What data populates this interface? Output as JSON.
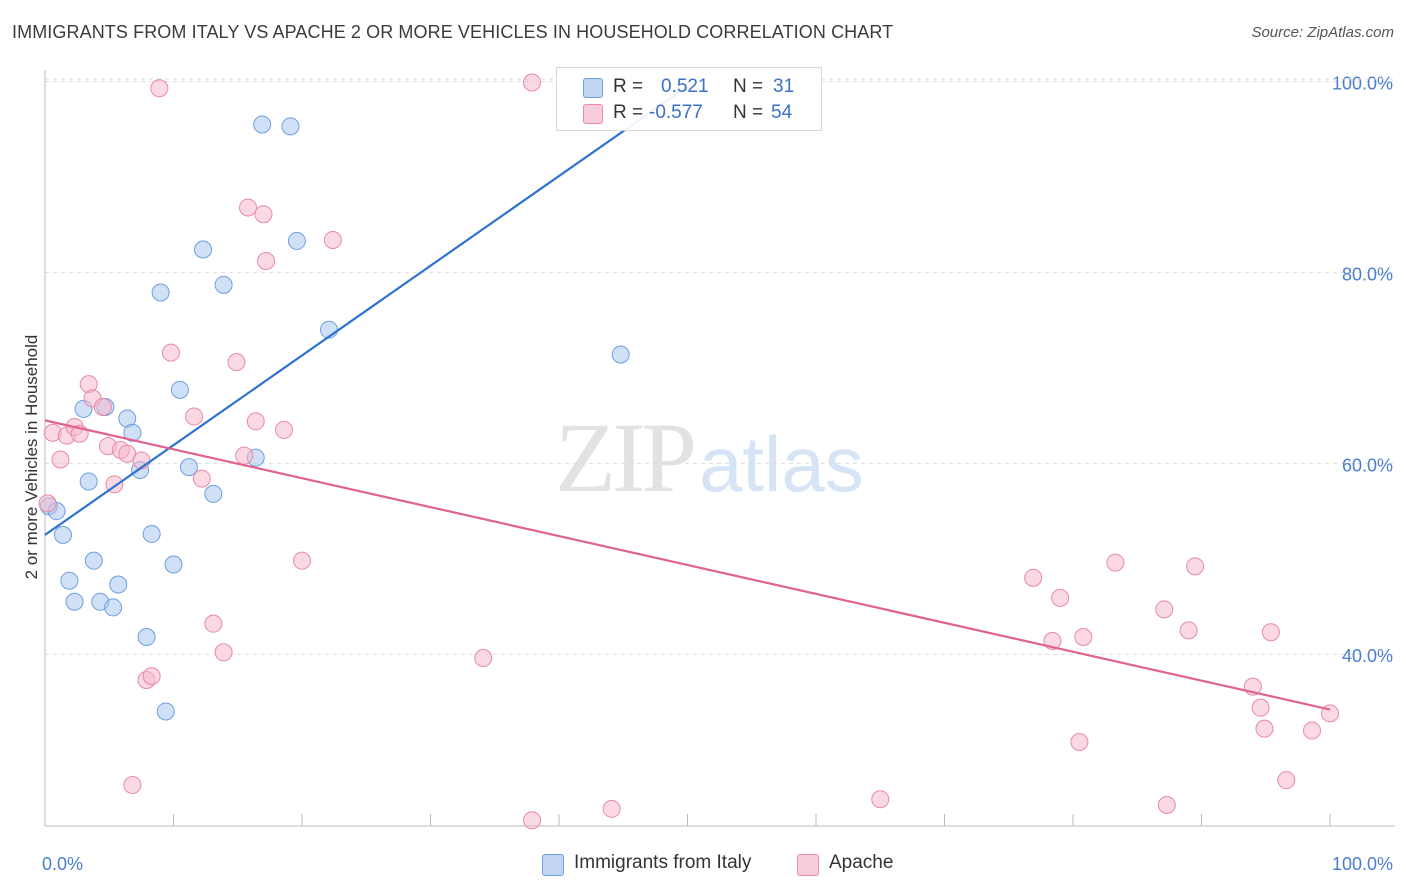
{
  "title": "IMMIGRANTS FROM ITALY VS APACHE 2 OR MORE VEHICLES IN HOUSEHOLD CORRELATION CHART",
  "source": "Source: ZipAtlas.com",
  "watermark": {
    "zip": "ZIP",
    "atlas": "atlas"
  },
  "legend_top": {
    "rows": [
      {
        "r_label": "R =",
        "r_value": "0.521",
        "n_label": "N =",
        "n_value": "31",
        "color": "#a9c6f0"
      },
      {
        "r_label": "R =",
        "r_value": "-0.577",
        "n_label": "N =",
        "n_value": "54",
        "color": "#f5b9cc"
      }
    ]
  },
  "legend_bottom": [
    {
      "label": "Immigrants from Italy",
      "color": "#a9c6f0"
    },
    {
      "label": "Apache",
      "color": "#f5b9cc"
    }
  ],
  "chart_data": {
    "type": "scatter",
    "xlabel": "",
    "ylabel": "2 or more Vehicles in Household",
    "xlim": [
      0,
      100
    ],
    "ylim": [
      22,
      101
    ],
    "x_tick_labels": [
      "0.0%",
      "100.0%"
    ],
    "y_ticks": [
      40,
      60,
      80,
      100
    ],
    "y_tick_labels": [
      "40.0%",
      "60.0%",
      "80.0%",
      "100.0%"
    ],
    "grid": true,
    "series": [
      {
        "name": "Immigrants from Italy",
        "color": "#a9c6f0",
        "stroke": "#6e9fe0",
        "trend_color": "#2e72d2",
        "trend": [
          [
            0,
            52.5
          ],
          [
            50,
            99.5
          ]
        ],
        "points": [
          [
            0.3,
            55.5
          ],
          [
            0.9,
            55.0
          ],
          [
            1.4,
            52.5
          ],
          [
            1.9,
            47.7
          ],
          [
            2.3,
            45.5
          ],
          [
            3.0,
            65.7
          ],
          [
            3.4,
            58.1
          ],
          [
            3.8,
            49.8
          ],
          [
            4.3,
            45.5
          ],
          [
            4.7,
            65.9
          ],
          [
            5.3,
            44.9
          ],
          [
            5.7,
            47.3
          ],
          [
            6.4,
            64.7
          ],
          [
            6.8,
            63.2
          ],
          [
            7.4,
            59.3
          ],
          [
            7.9,
            41.8
          ],
          [
            8.3,
            52.6
          ],
          [
            9.0,
            77.9
          ],
          [
            9.4,
            34.0
          ],
          [
            10.0,
            49.4
          ],
          [
            10.5,
            67.7
          ],
          [
            11.2,
            59.6
          ],
          [
            12.3,
            82.4
          ],
          [
            13.1,
            56.8
          ],
          [
            13.9,
            78.7
          ],
          [
            16.4,
            60.6
          ],
          [
            16.9,
            95.5
          ],
          [
            19.1,
            95.3
          ],
          [
            19.6,
            83.3
          ],
          [
            22.1,
            74.0
          ],
          [
            44.8,
            71.4
          ]
        ]
      },
      {
        "name": "Apache",
        "color": "#f5b9cc",
        "stroke": "#e88aa8",
        "trend_color": "#e0628f",
        "trend": [
          [
            0,
            64.5
          ],
          [
            100,
            34.2
          ]
        ],
        "points": [
          [
            0.2,
            55.8
          ],
          [
            0.6,
            63.2
          ],
          [
            1.2,
            60.4
          ],
          [
            1.7,
            62.9
          ],
          [
            2.3,
            63.8
          ],
          [
            2.7,
            63.1
          ],
          [
            3.4,
            68.3
          ],
          [
            3.7,
            66.8
          ],
          [
            4.5,
            65.9
          ],
          [
            4.9,
            61.8
          ],
          [
            5.4,
            57.8
          ],
          [
            5.9,
            61.4
          ],
          [
            6.4,
            61.0
          ],
          [
            6.8,
            26.3
          ],
          [
            7.5,
            60.3
          ],
          [
            7.9,
            37.3
          ],
          [
            8.3,
            37.7
          ],
          [
            8.9,
            99.3
          ],
          [
            9.8,
            71.6
          ],
          [
            11.6,
            64.9
          ],
          [
            12.2,
            58.4
          ],
          [
            13.1,
            43.2
          ],
          [
            13.9,
            40.2
          ],
          [
            14.9,
            70.6
          ],
          [
            15.5,
            60.8
          ],
          [
            15.8,
            86.8
          ],
          [
            16.4,
            64.4
          ],
          [
            17.0,
            86.1
          ],
          [
            17.2,
            81.2
          ],
          [
            18.6,
            63.5
          ],
          [
            20.0,
            49.8
          ],
          [
            22.4,
            83.4
          ],
          [
            34.1,
            39.6
          ],
          [
            37.9,
            99.9
          ],
          [
            37.9,
            22.6
          ],
          [
            44.1,
            23.8
          ],
          [
            65.0,
            24.8
          ],
          [
            76.9,
            48.0
          ],
          [
            78.4,
            41.4
          ],
          [
            79.0,
            45.9
          ],
          [
            80.5,
            30.8
          ],
          [
            80.8,
            41.8
          ],
          [
            83.3,
            49.6
          ],
          [
            87.1,
            44.7
          ],
          [
            87.3,
            24.2
          ],
          [
            89.0,
            42.5
          ],
          [
            89.5,
            49.2
          ],
          [
            94.0,
            36.6
          ],
          [
            94.6,
            34.4
          ],
          [
            94.9,
            32.2
          ],
          [
            95.4,
            42.3
          ],
          [
            96.6,
            26.8
          ],
          [
            98.6,
            32.0
          ],
          [
            100.0,
            33.8
          ]
        ]
      }
    ]
  }
}
